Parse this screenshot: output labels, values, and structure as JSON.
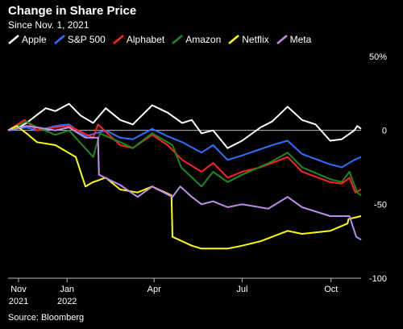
{
  "title": "Change in Share Price",
  "subtitle": "Since Nov. 1, 2021",
  "source": "Source: Bloomberg",
  "chart_data": {
    "type": "line",
    "title": "Change in Share Price",
    "subtitle": "Since Nov. 1, 2021",
    "xlabel": "",
    "ylabel": "",
    "x_tick_labels": [
      {
        "label": "Nov",
        "sub": "2021",
        "date": "2021-11-01"
      },
      {
        "label": "Jan",
        "sub": "2022",
        "date": "2022-01-01"
      },
      {
        "label": "Apr",
        "sub": "",
        "date": "2022-04-01"
      },
      {
        "label": "Jul",
        "sub": "",
        "date": "2022-07-01"
      },
      {
        "label": "Oct",
        "sub": "",
        "date": "2022-10-01"
      }
    ],
    "y_ticks": [
      {
        "value": 50,
        "label": "50%"
      },
      {
        "value": 0,
        "label": "0"
      },
      {
        "value": -50,
        "label": "-50"
      },
      {
        "value": -100,
        "label": "-100"
      }
    ],
    "ylim": [
      -100,
      50
    ],
    "xlim": [
      "2021-11-01",
      "2022-11-01"
    ],
    "grid": false,
    "legend_position": "top-left",
    "series": [
      {
        "name": "Apple",
        "color": "#ffffff",
        "points": [
          [
            "2021-11-01",
            0
          ],
          [
            "2021-11-10",
            1
          ],
          [
            "2021-11-20",
            5
          ],
          [
            "2021-11-30",
            10
          ],
          [
            "2021-12-10",
            15
          ],
          [
            "2021-12-20",
            13
          ],
          [
            "2022-01-03",
            18
          ],
          [
            "2022-01-15",
            10
          ],
          [
            "2022-01-28",
            5
          ],
          [
            "2022-02-10",
            15
          ],
          [
            "2022-02-25",
            7
          ],
          [
            "2022-03-10",
            4
          ],
          [
            "2022-03-30",
            17
          ],
          [
            "2022-04-15",
            12
          ],
          [
            "2022-04-30",
            5
          ],
          [
            "2022-05-10",
            7
          ],
          [
            "2022-05-20",
            -2
          ],
          [
            "2022-06-01",
            0
          ],
          [
            "2022-06-16",
            -12
          ],
          [
            "2022-07-01",
            -7
          ],
          [
            "2022-07-20",
            2
          ],
          [
            "2022-08-01",
            6
          ],
          [
            "2022-08-17",
            16
          ],
          [
            "2022-09-01",
            7
          ],
          [
            "2022-09-15",
            4
          ],
          [
            "2022-09-30",
            -7
          ],
          [
            "2022-10-12",
            -6
          ],
          [
            "2022-10-25",
            0
          ],
          [
            "2022-10-28",
            3
          ],
          [
            "2022-11-01",
            1
          ]
        ]
      },
      {
        "name": "S&P 500",
        "color": "#2f6fff",
        "points": [
          [
            "2021-11-01",
            0
          ],
          [
            "2021-11-20",
            2
          ],
          [
            "2021-12-01",
            0
          ],
          [
            "2021-12-20",
            3
          ],
          [
            "2022-01-03",
            4
          ],
          [
            "2022-01-20",
            -4
          ],
          [
            "2022-02-10",
            0
          ],
          [
            "2022-02-25",
            -5
          ],
          [
            "2022-03-10",
            -6
          ],
          [
            "2022-03-30",
            1
          ],
          [
            "2022-04-15",
            -4
          ],
          [
            "2022-04-30",
            -8
          ],
          [
            "2022-05-20",
            -15
          ],
          [
            "2022-06-01",
            -10
          ],
          [
            "2022-06-16",
            -20
          ],
          [
            "2022-07-01",
            -17
          ],
          [
            "2022-08-01",
            -10
          ],
          [
            "2022-08-17",
            -7
          ],
          [
            "2022-09-01",
            -16
          ],
          [
            "2022-09-30",
            -23
          ],
          [
            "2022-10-12",
            -25
          ],
          [
            "2022-10-25",
            -20
          ],
          [
            "2022-11-01",
            -18
          ]
        ]
      },
      {
        "name": "Alphabet",
        "color": "#ff2020",
        "points": [
          [
            "2021-11-01",
            0
          ],
          [
            "2021-11-18",
            7
          ],
          [
            "2021-12-01",
            0
          ],
          [
            "2021-12-20",
            2
          ],
          [
            "2022-01-03",
            3
          ],
          [
            "2022-01-28",
            -5
          ],
          [
            "2022-02-02",
            4
          ],
          [
            "2022-02-25",
            -10
          ],
          [
            "2022-03-10",
            -12
          ],
          [
            "2022-03-30",
            -3
          ],
          [
            "2022-04-15",
            -10
          ],
          [
            "2022-04-30",
            -20
          ],
          [
            "2022-05-20",
            -28
          ],
          [
            "2022-06-01",
            -22
          ],
          [
            "2022-06-16",
            -32
          ],
          [
            "2022-07-01",
            -28
          ],
          [
            "2022-07-20",
            -25
          ],
          [
            "2022-08-17",
            -18
          ],
          [
            "2022-09-01",
            -28
          ],
          [
            "2022-09-30",
            -35
          ],
          [
            "2022-10-12",
            -36
          ],
          [
            "2022-10-20",
            -32
          ],
          [
            "2022-10-26",
            -42
          ],
          [
            "2022-11-01",
            -40
          ]
        ]
      },
      {
        "name": "Amazon",
        "color": "#1e8a1e",
        "points": [
          [
            "2021-11-01",
            0
          ],
          [
            "2021-11-20",
            6
          ],
          [
            "2021-12-01",
            2
          ],
          [
            "2021-12-20",
            -3
          ],
          [
            "2022-01-03",
            0
          ],
          [
            "2022-01-28",
            -18
          ],
          [
            "2022-02-04",
            -2
          ],
          [
            "2022-02-25",
            -8
          ],
          [
            "2022-03-10",
            -12
          ],
          [
            "2022-03-30",
            -2
          ],
          [
            "2022-04-20",
            -10
          ],
          [
            "2022-04-29",
            -25
          ],
          [
            "2022-05-20",
            -38
          ],
          [
            "2022-06-01",
            -28
          ],
          [
            "2022-06-16",
            -35
          ],
          [
            "2022-07-01",
            -30
          ],
          [
            "2022-07-29",
            -22
          ],
          [
            "2022-08-17",
            -15
          ],
          [
            "2022-09-01",
            -25
          ],
          [
            "2022-09-30",
            -33
          ],
          [
            "2022-10-12",
            -35
          ],
          [
            "2022-10-20",
            -28
          ],
          [
            "2022-10-28",
            -42
          ],
          [
            "2022-11-01",
            -44
          ]
        ]
      },
      {
        "name": "Netflix",
        "color": "#ffff00",
        "points": [
          [
            "2021-11-01",
            0
          ],
          [
            "2021-11-10",
            3
          ],
          [
            "2021-11-20",
            -2
          ],
          [
            "2021-12-01",
            -8
          ],
          [
            "2021-12-20",
            -10
          ],
          [
            "2022-01-10",
            -18
          ],
          [
            "2022-01-20",
            -38
          ],
          [
            "2022-01-28",
            -35
          ],
          [
            "2022-02-10",
            -32
          ],
          [
            "2022-02-25",
            -40
          ],
          [
            "2022-03-15",
            -42
          ],
          [
            "2022-03-30",
            -38
          ],
          [
            "2022-04-19",
            -44
          ],
          [
            "2022-04-20",
            -72
          ],
          [
            "2022-05-10",
            -78
          ],
          [
            "2022-05-20",
            -80
          ],
          [
            "2022-06-16",
            -80
          ],
          [
            "2022-07-01",
            -78
          ],
          [
            "2022-07-20",
            -75
          ],
          [
            "2022-08-01",
            -72
          ],
          [
            "2022-08-17",
            -68
          ],
          [
            "2022-09-01",
            -70
          ],
          [
            "2022-09-30",
            -68
          ],
          [
            "2022-10-18",
            -63
          ],
          [
            "2022-10-19",
            -60
          ],
          [
            "2022-11-01",
            -58
          ]
        ]
      },
      {
        "name": "Meta",
        "color": "#c18cf0",
        "points": [
          [
            "2021-11-01",
            0
          ],
          [
            "2021-11-20",
            3
          ],
          [
            "2021-12-01",
            2
          ],
          [
            "2021-12-20",
            0
          ],
          [
            "2022-01-03",
            2
          ],
          [
            "2022-01-20",
            -5
          ],
          [
            "2022-02-02",
            -5
          ],
          [
            "2022-02-03",
            -30
          ],
          [
            "2022-02-25",
            -37
          ],
          [
            "2022-03-15",
            -45
          ],
          [
            "2022-03-30",
            -38
          ],
          [
            "2022-04-20",
            -45
          ],
          [
            "2022-04-28",
            -38
          ],
          [
            "2022-05-10",
            -45
          ],
          [
            "2022-05-20",
            -50
          ],
          [
            "2022-06-01",
            -48
          ],
          [
            "2022-06-16",
            -52
          ],
          [
            "2022-07-01",
            -50
          ],
          [
            "2022-07-28",
            -53
          ],
          [
            "2022-08-17",
            -45
          ],
          [
            "2022-09-01",
            -52
          ],
          [
            "2022-09-30",
            -58
          ],
          [
            "2022-10-20",
            -58
          ],
          [
            "2022-10-27",
            -72
          ],
          [
            "2022-11-01",
            -74
          ]
        ]
      }
    ]
  }
}
